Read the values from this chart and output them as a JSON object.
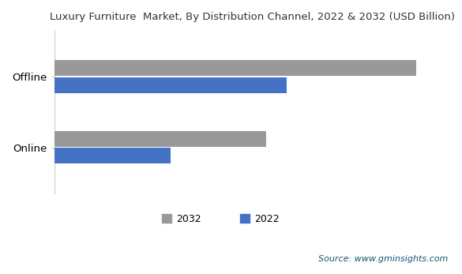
{
  "title": "Luxury Furniture  Market, By Distribution Channel, 2022 & 2032 (USD Billion)",
  "categories": [
    "Online",
    "Offline"
  ],
  "values_2032": [
    15.5,
    26.5
  ],
  "values_2022": [
    8.5,
    17.0
  ],
  "color_2032": "#999999",
  "color_2022": "#4472c4",
  "source_text": "Source: www.gminsights.com",
  "background_color": "#ffffff",
  "xlim": [
    0,
    29
  ]
}
